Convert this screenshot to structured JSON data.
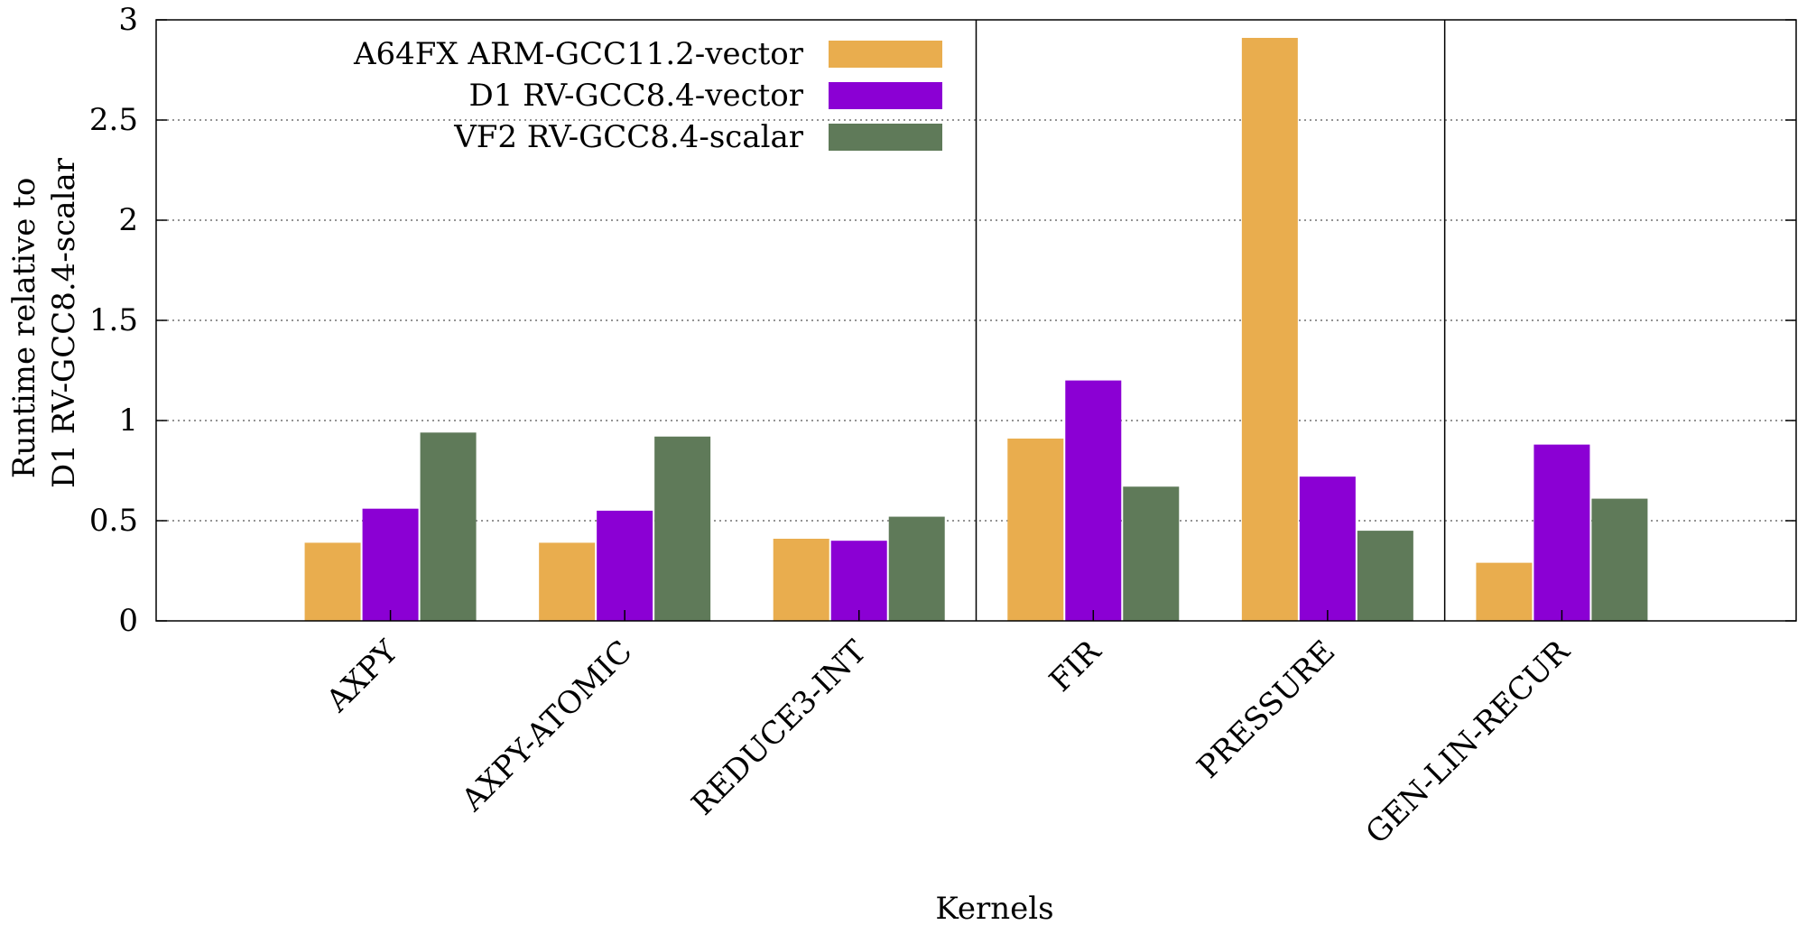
{
  "chart_data": {
    "type": "bar",
    "xlabel": "Kernels",
    "ylabel_lines": [
      "Runtime relative to",
      "D1 RV-GCC8.4-scalar"
    ],
    "ylim": [
      0,
      3
    ],
    "yticks": [
      "0",
      "0.5",
      "1",
      "1.5",
      "2",
      "2.5",
      "3"
    ],
    "ytick_values": [
      0,
      0.5,
      1,
      1.5,
      2,
      2.5,
      3
    ],
    "grid": "horizontal dotted",
    "legend_position": "top-left",
    "group_separators_after": [
      2,
      4
    ],
    "categories": [
      "AXPY",
      "AXPY-ATOMIC",
      "REDUCE3-INT",
      "FIR",
      "PRESSURE",
      "GEN-LIN-RECUR"
    ],
    "series": [
      {
        "name": "A64FX ARM-GCC11.2-vector",
        "color": "#e9ad4e",
        "values": [
          0.39,
          0.39,
          0.41,
          0.91,
          2.91,
          0.29
        ]
      },
      {
        "name": "D1 RV-GCC8.4-vector",
        "color": "#8b00d4",
        "values": [
          0.56,
          0.55,
          0.4,
          1.2,
          0.72,
          0.88
        ]
      },
      {
        "name": "VF2 RV-GCC8.4-scalar",
        "color": "#5f7a59",
        "values": [
          0.94,
          0.92,
          0.52,
          0.67,
          0.45,
          0.61
        ]
      }
    ]
  }
}
